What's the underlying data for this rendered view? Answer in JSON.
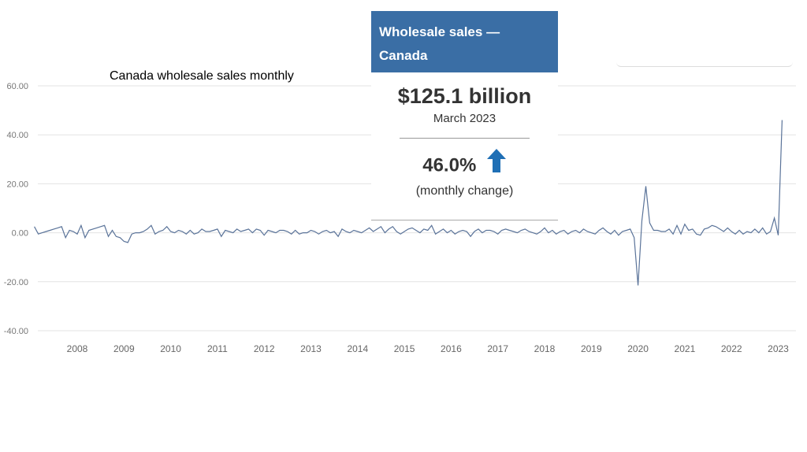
{
  "chart_title": "Canada wholesale sales monthly",
  "card": {
    "header": "Wholesale sales —\nCanada",
    "header_line1": "Wholesale sales —",
    "header_line2": "Canada",
    "value": "$125.1 billion",
    "period": "March 2023",
    "change": "46.0%",
    "change_label": "(monthly change)",
    "arrow_icon": "arrow-up-icon",
    "accent_color": "#3a6ea5",
    "arrow_color": "#1f6fb5"
  },
  "chart_data": {
    "type": "line",
    "title": "Canada wholesale sales monthly",
    "xlabel": "",
    "ylabel": "",
    "ylim": [
      -40,
      60
    ],
    "y_ticks": [
      "60.00",
      "40.00",
      "20.00",
      "0.00",
      "-20.00",
      "-40.00"
    ],
    "x_ticks": [
      "2008",
      "2009",
      "2010",
      "2011",
      "2012",
      "2013",
      "2014",
      "2015",
      "2016",
      "2017",
      "2018",
      "2019",
      "2020",
      "2021",
      "2022",
      "2023"
    ],
    "grid": true,
    "line_color": "#5a7399",
    "series": [
      {
        "x_start": "2007-02",
        "values": [
          2.5,
          -0.5,
          0,
          0.5,
          1,
          1.5,
          2,
          2.5,
          -2,
          1,
          0.5,
          -0.5,
          3,
          -2,
          1,
          1.5,
          2,
          2.5,
          3,
          -1.5,
          1,
          -1.5,
          -2,
          -3.5,
          -4,
          -0.5,
          0,
          0,
          0.5,
          1.5,
          3,
          -0.5,
          0.5,
          1,
          2.5,
          0.5,
          0,
          1,
          0.5,
          -0.5,
          1,
          -0.5,
          0,
          1.5,
          0.5,
          0.5,
          1,
          1.5,
          -1.5,
          1,
          0.5,
          0,
          1.5,
          0.5,
          1,
          1.5,
          0,
          1.5,
          1,
          -1,
          1,
          0.5,
          0,
          1,
          1,
          0.5,
          -0.5,
          1,
          -0.5,
          0,
          0,
          1,
          0.5,
          -0.5,
          0.5,
          1,
          0,
          0.5,
          -1.5,
          1.5,
          0.5,
          0,
          1,
          0.5,
          0,
          1,
          2,
          0.5,
          1.5,
          2.5,
          0,
          1.5,
          2.5,
          0.5,
          -0.5,
          0.5,
          1.5,
          2,
          1,
          0,
          1.5,
          1,
          3,
          -0.5,
          0.5,
          1.5,
          0,
          1,
          -0.5,
          0.5,
          1,
          0.5,
          -1.5,
          0.5,
          1.5,
          0,
          1,
          1,
          0.5,
          -0.5,
          1,
          1.5,
          1,
          0.5,
          0,
          1,
          1.5,
          0.5,
          0,
          -0.5,
          0.5,
          2,
          0,
          1,
          -0.5,
          0.5,
          1,
          -0.5,
          0.5,
          1,
          0,
          1.5,
          0.5,
          0,
          -0.5,
          1,
          2,
          0.5,
          -0.5,
          1,
          -1,
          0.5,
          1,
          1.5,
          -2,
          -21.5,
          5,
          19,
          4,
          1,
          1,
          0.5,
          0.5,
          1.5,
          -0.5,
          3,
          -0.5,
          3.5,
          1,
          1.5,
          -0.5,
          -1,
          1.5,
          2,
          3,
          2.5,
          1.5,
          0.5,
          2,
          0.5,
          -0.5,
          1,
          -0.5,
          0.5,
          0,
          1.5,
          0,
          2,
          -0.5,
          0.5,
          6,
          -1,
          46
        ]
      }
    ]
  }
}
